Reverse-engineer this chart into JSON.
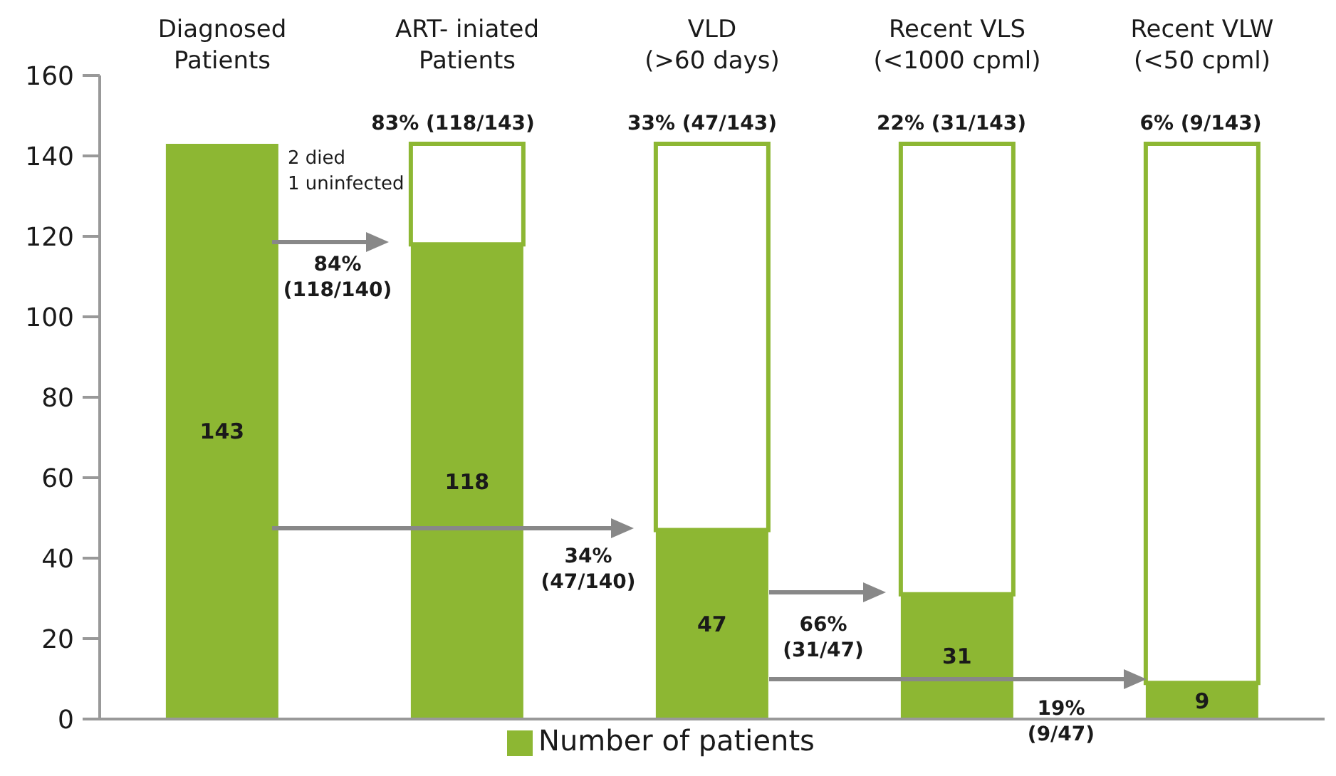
{
  "chart_data": {
    "type": "bar",
    "stacked": true,
    "categories": [
      "Diagnosed\nPatients",
      "ART- iniated\nPatients",
      "VLD\n(>60 days)",
      "Recent VLS\n(<1000 cpml)",
      "Recent VLW\n(<50 cpml)"
    ],
    "series": [
      {
        "name": "Number of patients",
        "color": "#8db733",
        "values": [
          143,
          118,
          47,
          31,
          9
        ],
        "value_labels": [
          "143",
          "118",
          "47",
          "31",
          "9"
        ]
      },
      {
        "color": "#ffffff",
        "values": [
          null,
          25,
          96,
          112,
          134
        ]
      }
    ],
    "ylim": [
      0,
      160
    ],
    "yticks": [
      0,
      20,
      40,
      60,
      80,
      100,
      120,
      140,
      160
    ],
    "legend": "bottom",
    "annotations": [
      "83% (118/143)",
      "33% (47/143)",
      "22% (31/143)",
      "6% (9/143)",
      "2 died\n1 uninfected",
      "84%\n(118/140)",
      "34%\n(47/140)",
      "66%\n(31/47)",
      "19%\n(9/47)"
    ]
  }
}
